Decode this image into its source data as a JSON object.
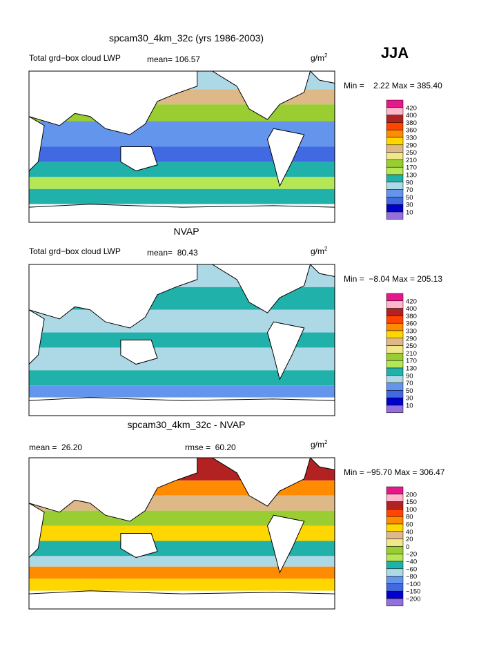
{
  "header": {
    "season": "JJA"
  },
  "panels": [
    {
      "title": "spcam30_4km_32c (yrs 1986-2003)",
      "label": "Total grd−box cloud LWP",
      "mean": "mean= 106.57",
      "units": {
        "base": "g/m",
        "exponent": "2"
      },
      "range": "Min =    2.22 Max = 385.40",
      "colorbar": [
        "420",
        "400",
        "380",
        "360",
        "330",
        "290",
        "250",
        "210",
        "170",
        "130",
        "90",
        "70",
        "50",
        "30",
        "10"
      ]
    },
    {
      "title": "NVAP",
      "label": "Total grd−box cloud LWP",
      "mean": "mean=  80.43",
      "units": {
        "base": "g/m",
        "exponent": "2"
      },
      "range": "Min =  −8.04 Max = 205.13",
      "colorbar": [
        "420",
        "400",
        "380",
        "360",
        "330",
        "290",
        "250",
        "210",
        "170",
        "130",
        "90",
        "70",
        "50",
        "30",
        "10"
      ]
    },
    {
      "title": "spcam30_4km_32c - NVAP",
      "mean": "mean =  26.20",
      "rmse": "rmse =  60.20",
      "units": {
        "base": "g/m",
        "exponent": "2"
      },
      "range": "Min = −95.70 Max = 306.47",
      "colorbar": [
        "200",
        "150",
        "100",
        "80",
        "60",
        "40",
        "20",
        "0",
        "−20",
        "−40",
        "−60",
        "−80",
        "−100",
        "−150",
        "−200"
      ]
    }
  ]
}
